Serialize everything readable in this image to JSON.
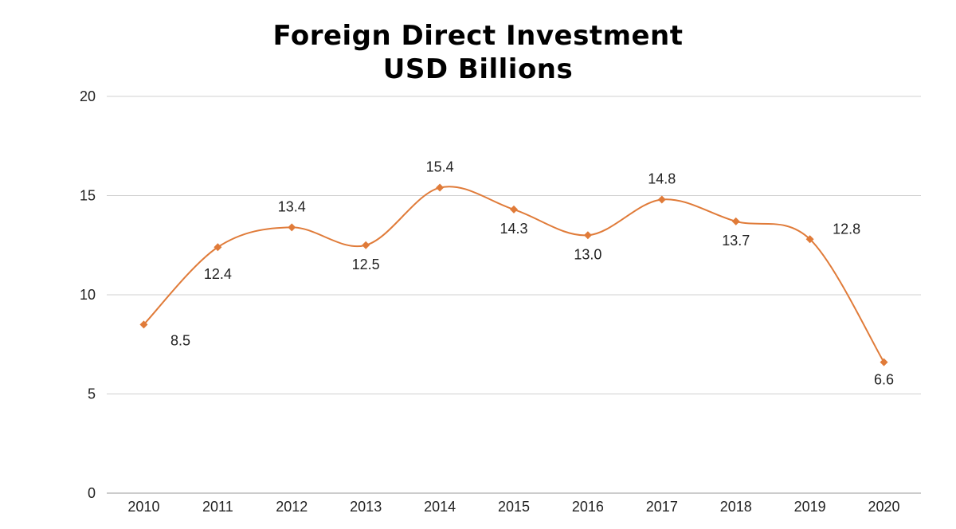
{
  "chart_data": {
    "type": "line",
    "title": "Foreign Direct Investment",
    "subtitle": "USD Billions",
    "categories": [
      "2010",
      "2011",
      "2012",
      "2013",
      "2014",
      "2015",
      "2016",
      "2017",
      "2018",
      "2019",
      "2020"
    ],
    "series": [
      {
        "values": [
          8.5,
          12.4,
          13.4,
          12.5,
          15.4,
          14.3,
          13.0,
          14.8,
          13.7,
          12.8,
          6.6
        ],
        "labels": [
          "8.5",
          "12.4",
          "13.4",
          "12.5",
          "15.4",
          "14.3",
          "13.0",
          "14.8",
          "13.7",
          "12.8",
          "6.6"
        ]
      }
    ],
    "yticks": [
      "0",
      "5",
      "10",
      "15",
      "20"
    ],
    "ylim": [
      0,
      20
    ],
    "grid": true,
    "line_style": "smooth",
    "marker": "diamond",
    "color": "#E07B39"
  }
}
